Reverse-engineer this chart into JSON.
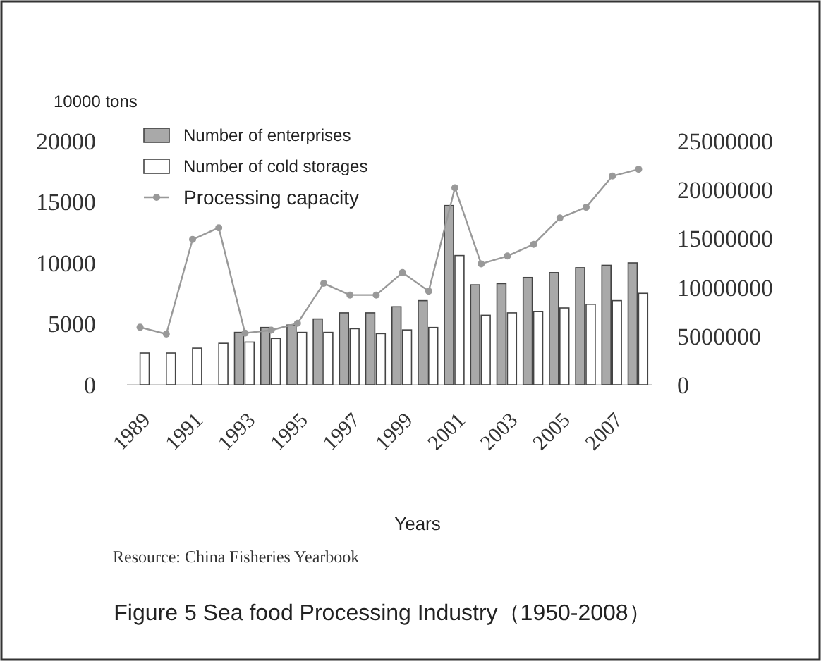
{
  "chart_data": {
    "type": "bar",
    "title": "Figure 5 Sea food Processing Industry（1950-2008）",
    "xlabel": "Years",
    "ylabel": "10000 tons",
    "categories": [
      "1989",
      null,
      "1991",
      null,
      "1993",
      null,
      "1995",
      null,
      "1997",
      null,
      "1999",
      null,
      "2001",
      null,
      "2003",
      null,
      "2005",
      null,
      "2007",
      null
    ],
    "series": [
      {
        "name": "Number of enterprises",
        "color": "#a9a9a9",
        "values": [
          null,
          null,
          null,
          null,
          4300,
          4700,
          4900,
          5400,
          5900,
          5900,
          6400,
          6900,
          14700,
          8200,
          8300,
          8800,
          9200,
          9600,
          9800,
          10000
        ]
      },
      {
        "name": "Number of cold storages",
        "color": "#ffffff",
        "values": [
          2600,
          2600,
          3000,
          3400,
          3500,
          3800,
          4300,
          4300,
          4600,
          4200,
          4500,
          4700,
          10600,
          5700,
          5900,
          6000,
          6300,
          6600,
          6900,
          7500
        ]
      },
      {
        "name": "Processing capacity",
        "color": "#999999",
        "type": "line",
        "axis": "y2",
        "marker": "circle",
        "values": [
          5900000,
          5200000,
          14900000,
          16100000,
          5300000,
          5600000,
          6300000,
          10400000,
          9200000,
          9200000,
          11500000,
          9600000,
          20200000,
          12400000,
          13200000,
          14400000,
          17100000,
          18200000,
          21400000,
          22100000
        ]
      }
    ],
    "ylim": [
      0,
      20000
    ],
    "yticks": [
      0,
      5000,
      10000,
      15000,
      20000
    ],
    "y2lim": [
      0,
      25000000
    ],
    "y2ticks": [
      0,
      5000000,
      10000000,
      15000000,
      20000000,
      25000000
    ],
    "legend": "top left",
    "grid": false,
    "annotations": [
      "Resource: China Fisheries Yearbook"
    ]
  }
}
